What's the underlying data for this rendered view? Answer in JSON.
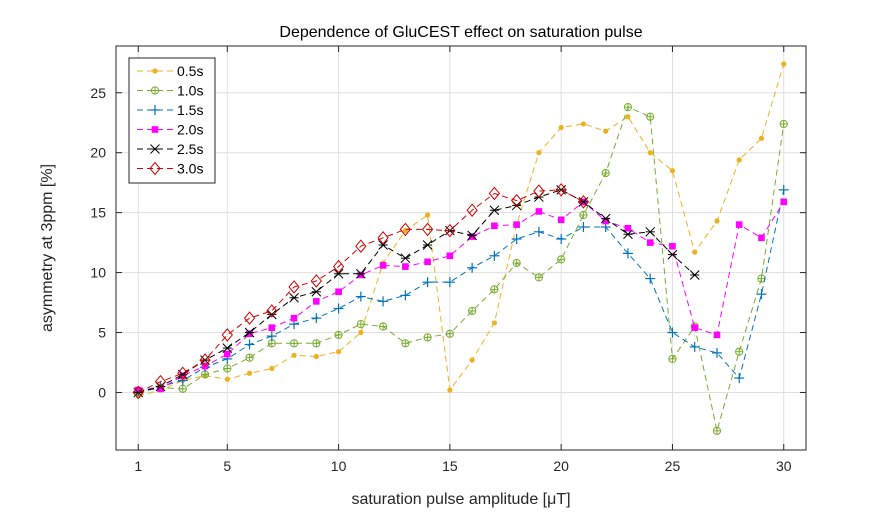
{
  "chart_data": {
    "type": "line",
    "title": "Dependence of GluCEST effect on saturation pulse",
    "xlabel": "saturation pulse amplitude [μT]",
    "ylabel": "asymmetry at 3ppm [%]",
    "xlim": [
      0,
      31
    ],
    "ylim": [
      -4.8,
      28.9
    ],
    "xticks": [
      1,
      5,
      10,
      15,
      20,
      25,
      30
    ],
    "yticks": [
      0,
      5,
      10,
      15,
      20,
      25
    ],
    "grid": true,
    "legend_position": "top-left",
    "series": [
      {
        "name": "0.5s",
        "color": "#EDB120",
        "marker": "dot",
        "x": [
          1,
          2,
          3,
          4,
          5,
          6,
          7,
          8,
          9,
          10,
          11,
          12,
          13,
          14,
          15,
          16,
          17,
          18,
          19,
          20,
          21,
          22,
          23,
          24,
          25,
          26,
          27,
          28,
          29,
          30
        ],
        "values": [
          -0.3,
          0.2,
          1.0,
          1.4,
          1.1,
          1.6,
          2.0,
          3.1,
          3.0,
          3.4,
          5.0,
          10.8,
          13.5,
          14.8,
          0.2,
          2.7,
          5.8,
          14.0,
          20.0,
          22.1,
          22.4,
          21.8,
          23.0,
          20.0,
          18.5,
          11.7,
          14.3,
          19.4,
          21.2,
          27.4
        ]
      },
      {
        "name": "1.0s",
        "color": "#77AC30",
        "marker": "circle-plus",
        "x": [
          1,
          2,
          3,
          4,
          5,
          6,
          7,
          8,
          9,
          10,
          11,
          12,
          13,
          14,
          15,
          16,
          17,
          18,
          19,
          20,
          21,
          22,
          23,
          24,
          25,
          26,
          27,
          28,
          29,
          30
        ],
        "values": [
          0.0,
          0.4,
          0.3,
          1.5,
          2.0,
          2.9,
          4.1,
          4.1,
          4.1,
          4.8,
          5.7,
          5.5,
          4.1,
          4.6,
          4.9,
          6.8,
          8.6,
          10.8,
          9.6,
          11.1,
          14.8,
          18.3,
          23.8,
          23.0,
          2.8,
          5.5,
          -3.2,
          3.4,
          9.5,
          22.4
        ]
      },
      {
        "name": "1.5s",
        "color": "#0072BD",
        "marker": "plus",
        "x": [
          1,
          2,
          3,
          4,
          5,
          6,
          7,
          8,
          9,
          10,
          11,
          12,
          13,
          14,
          15,
          16,
          17,
          18,
          19,
          20,
          21,
          22,
          23,
          24,
          25,
          26,
          27,
          28,
          29,
          30
        ],
        "values": [
          0.1,
          0.5,
          1.0,
          2.1,
          2.8,
          4.0,
          4.7,
          5.7,
          6.2,
          7.0,
          8.0,
          7.6,
          8.1,
          9.2,
          9.2,
          10.4,
          11.4,
          12.8,
          13.4,
          12.8,
          13.8,
          13.8,
          11.6,
          9.5,
          5.0,
          3.8,
          3.3,
          1.2,
          8.2,
          16.9
        ]
      },
      {
        "name": "2.0s",
        "color": "#FF00FF",
        "marker": "square",
        "x": [
          1,
          2,
          3,
          4,
          5,
          6,
          7,
          8,
          9,
          10,
          11,
          12,
          13,
          14,
          15,
          16,
          17,
          18,
          19,
          20,
          21,
          22,
          23,
          24,
          25,
          26,
          27,
          28,
          29,
          30
        ],
        "values": [
          0.2,
          0.3,
          1.4,
          2.2,
          3.2,
          4.9,
          5.4,
          6.2,
          7.6,
          8.4,
          9.8,
          10.6,
          10.5,
          10.9,
          11.4,
          13.0,
          13.9,
          14.0,
          15.1,
          14.4,
          15.9,
          14.3,
          13.7,
          12.5,
          12.2,
          5.4,
          4.8,
          14.0,
          12.9,
          15.9
        ]
      },
      {
        "name": "2.5s",
        "color": "#000000",
        "marker": "star",
        "x": [
          1,
          2,
          3,
          4,
          5,
          6,
          7,
          8,
          9,
          10,
          11,
          12,
          13,
          14,
          15,
          16,
          17,
          18,
          19,
          20,
          21,
          22,
          23,
          24,
          25,
          26
        ],
        "values": [
          0.0,
          0.5,
          1.5,
          2.7,
          3.7,
          5.0,
          6.5,
          7.9,
          8.4,
          9.9,
          9.9,
          12.3,
          11.2,
          12.3,
          13.5,
          13.1,
          15.2,
          15.6,
          16.3,
          16.9,
          15.9,
          14.5,
          13.2,
          13.4,
          11.5,
          9.8
        ]
      },
      {
        "name": "3.0s",
        "color": "#D00000",
        "marker": "diamond",
        "x": [
          1,
          2,
          3,
          4,
          5,
          6,
          7,
          8,
          9,
          10,
          11,
          12,
          13,
          14,
          15,
          16,
          17,
          18,
          19,
          20,
          21
        ],
        "values": [
          0.0,
          0.9,
          1.6,
          2.7,
          4.8,
          6.2,
          6.8,
          8.8,
          9.3,
          10.5,
          12.2,
          12.9,
          13.6,
          13.6,
          13.5,
          15.2,
          16.6,
          16.0,
          16.8,
          16.9,
          15.9
        ]
      }
    ]
  }
}
